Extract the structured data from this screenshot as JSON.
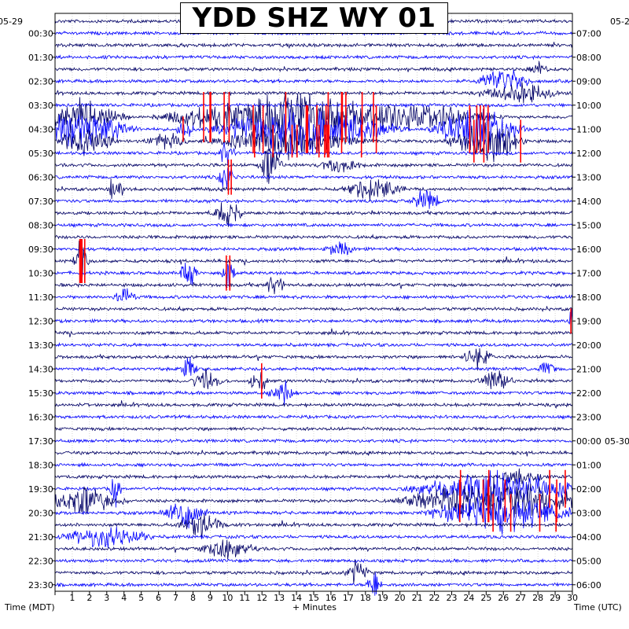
{
  "chart_data": {
    "type": "line",
    "title": "YDD SHZ WY 01",
    "xlabel": "+ Minutes",
    "left_axis_label": "Time (MDT)",
    "right_axis_label": "Time (UTC)",
    "left_date": "05-29",
    "right_date_top": "05-2",
    "right_date_change": "05-30",
    "x_ticks": [
      "1",
      "2",
      "3",
      "4",
      "5",
      "6",
      "7",
      "8",
      "9",
      "10",
      "11",
      "12",
      "13",
      "14",
      "15",
      "16",
      "17",
      "18",
      "19",
      "20",
      "21",
      "22",
      "23",
      "24",
      "25",
      "26",
      "27",
      "28",
      "29",
      "30"
    ],
    "xlim": [
      0,
      30
    ],
    "left_ticks": [
      "00:30",
      "01:30",
      "02:30",
      "03:30",
      "04:30",
      "05:30",
      "06:30",
      "07:30",
      "08:30",
      "09:30",
      "10:30",
      "11:30",
      "12:30",
      "13:30",
      "14:30",
      "15:30",
      "16:30",
      "17:30",
      "18:30",
      "19:30",
      "20:30",
      "21:30",
      "22:30",
      "23:30"
    ],
    "right_ticks": [
      "07:00",
      "08:00",
      "09:00",
      "10:00",
      "11:00",
      "12:00",
      "13:00",
      "14:00",
      "15:00",
      "16:00",
      "17:00",
      "18:00",
      "19:00",
      "20:00",
      "21:00",
      "22:00",
      "23:00",
      "00:00",
      "01:00",
      "02:00",
      "03:00",
      "04:00",
      "05:00",
      "06:00"
    ],
    "trace_colors": [
      "#000066",
      "#0000ff"
    ],
    "clip_color": "#ff0000",
    "num_traces": 48,
    "minutes_per_trace": 30,
    "grid": true
  }
}
